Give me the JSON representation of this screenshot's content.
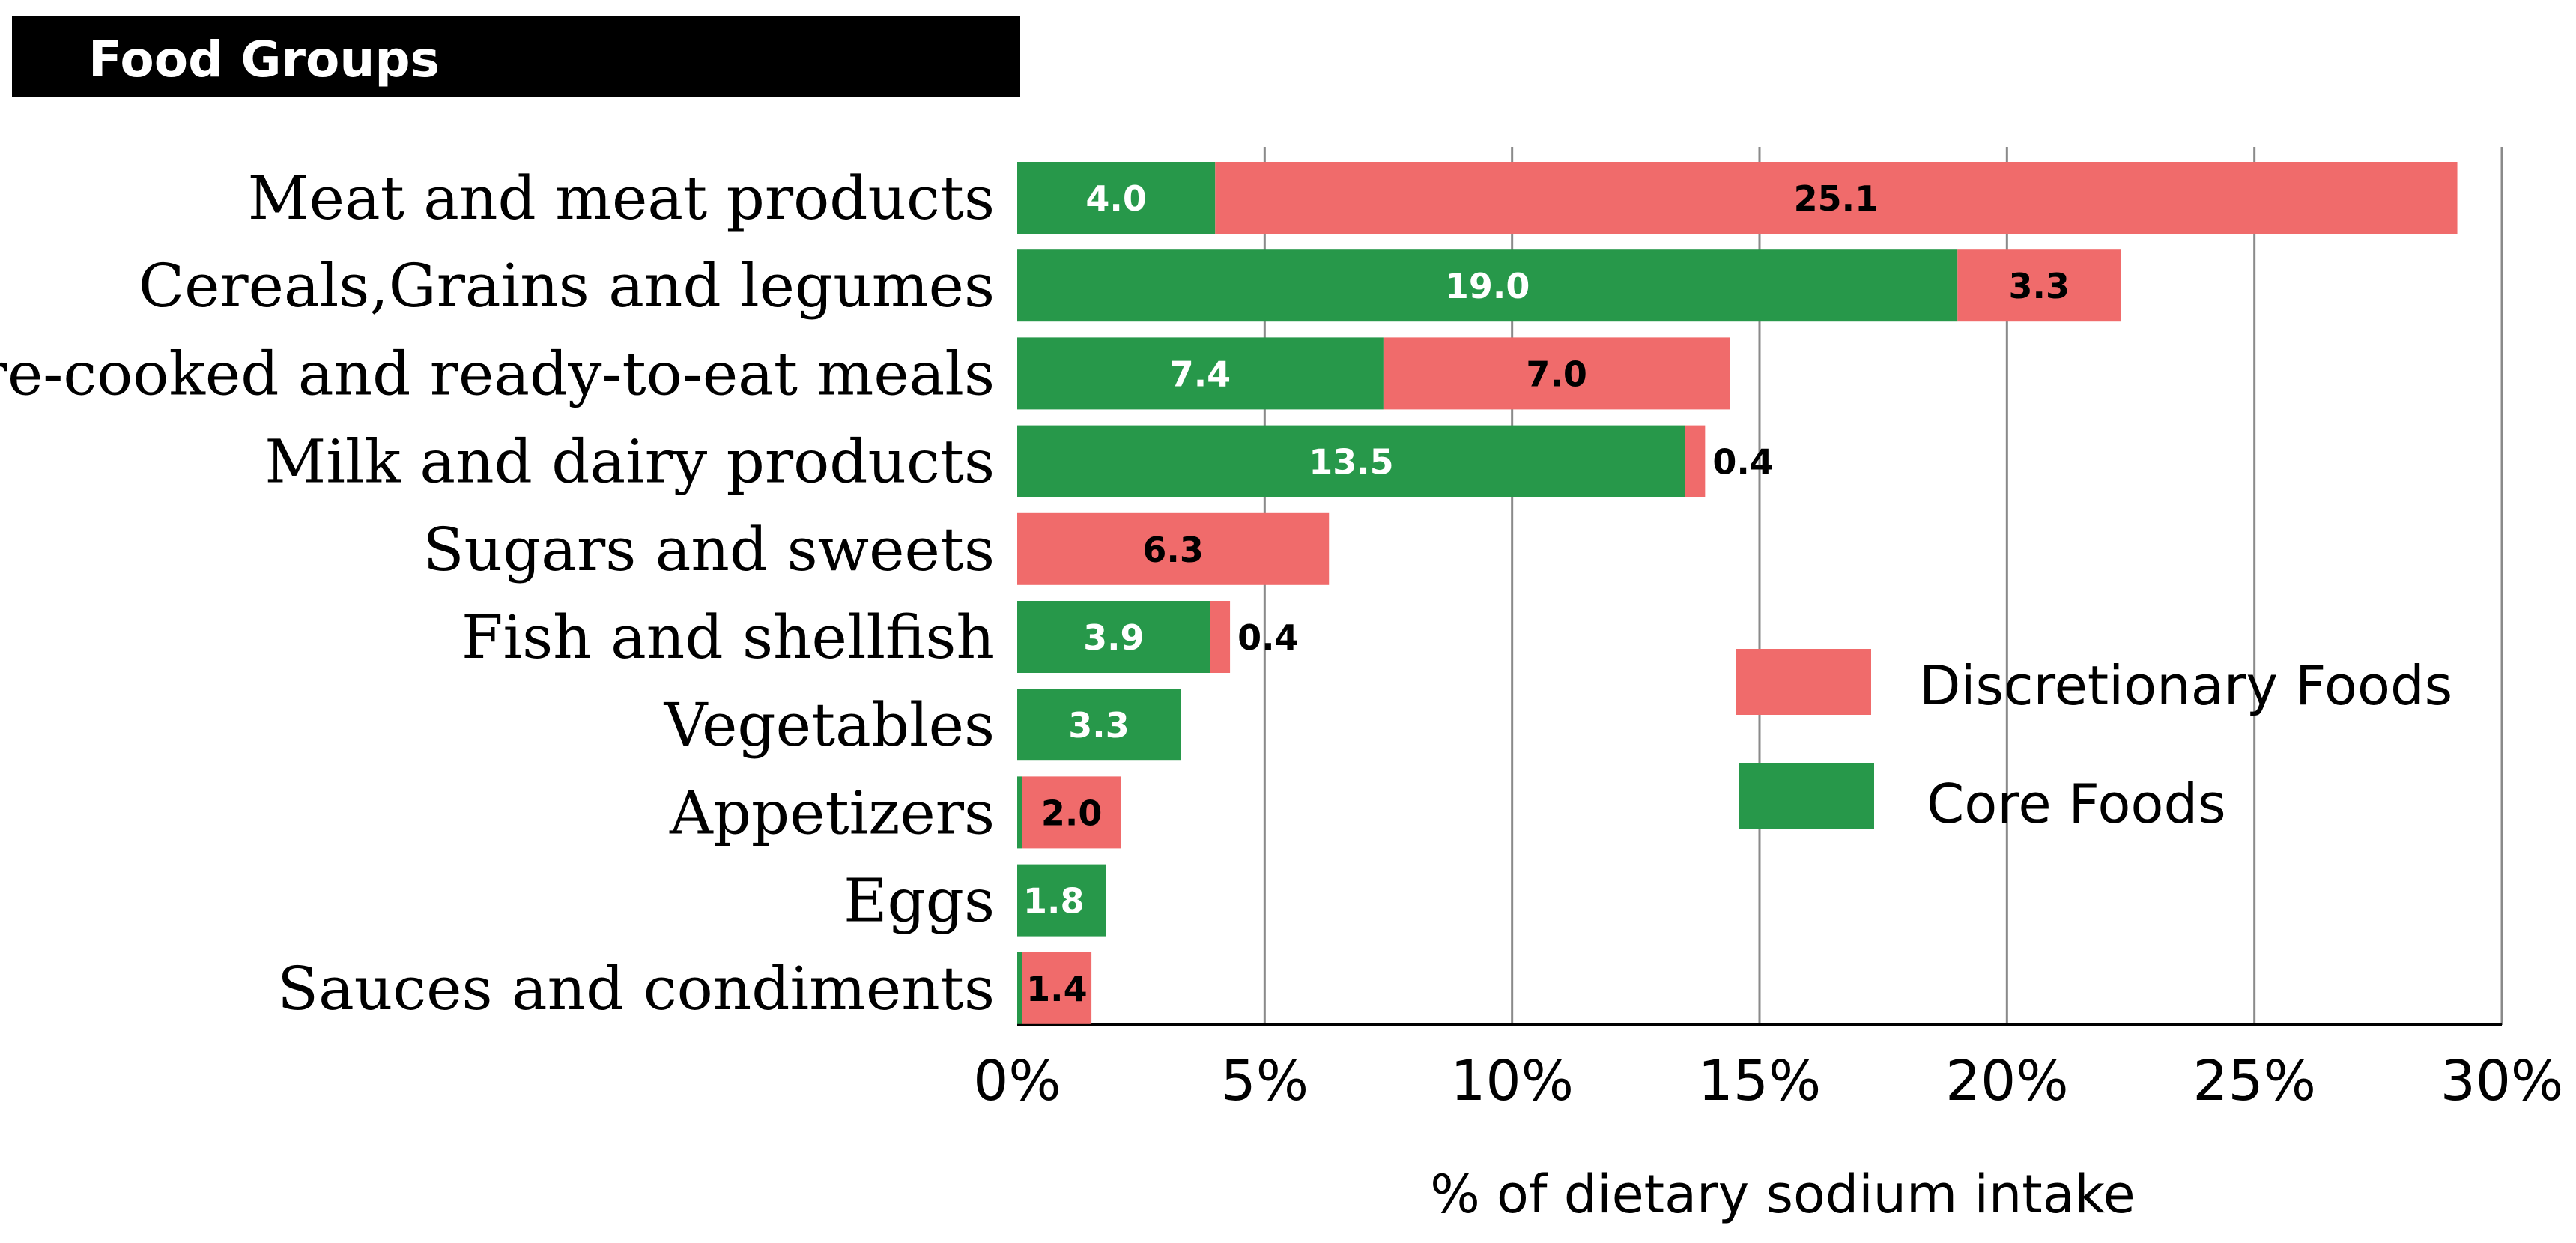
{
  "header": {
    "title": "Food Groups"
  },
  "chart_data": {
    "type": "bar",
    "orientation": "horizontal",
    "stacked": true,
    "title": "Food Groups",
    "xlabel": "% of dietary sodium intake",
    "ylabel": "",
    "xlim": [
      0,
      30
    ],
    "x_ticks": [
      0,
      5,
      10,
      15,
      20,
      25,
      30
    ],
    "x_tick_labels": [
      "0%",
      "5%",
      "10%",
      "15%",
      "20%",
      "25%",
      "30%"
    ],
    "grid": true,
    "categories": [
      "Meat and meat products",
      "Cereals,Grains and legumes",
      "Pre-cooked and ready-to-eat meals",
      "Milk and dairy products",
      "Sugars and sweets",
      "Fish and shellfish",
      "Vegetables",
      "Appetizers",
      "Eggs",
      "Sauces and condiments"
    ],
    "series": [
      {
        "name": "Core Foods",
        "color": "#27984a",
        "values": [
          4.0,
          19.0,
          7.4,
          13.5,
          0,
          3.9,
          3.3,
          0.1,
          1.8,
          0.1
        ],
        "labels": [
          "4.0",
          "19.0",
          "7.4",
          "13.5",
          "",
          "3.9",
          "3.3",
          "",
          "1.8",
          ""
        ]
      },
      {
        "name": "Discretionary Foods",
        "color": "#f06b6b",
        "values": [
          25.1,
          3.3,
          7.0,
          0.4,
          6.3,
          0.4,
          0,
          2.0,
          0,
          1.4
        ],
        "labels": [
          "25.1",
          "3.3",
          "7.0",
          "0.4",
          "6.3",
          "0.4",
          "",
          "2.0",
          "",
          "1.4"
        ]
      }
    ],
    "legend": {
      "position": "right",
      "entries": [
        "Discretionary Foods",
        "Core Foods"
      ]
    },
    "colors": {
      "core": "#27984a",
      "discretionary": "#f06b6b",
      "header_bg": "#000000",
      "grid": "#8a8a8a"
    }
  }
}
